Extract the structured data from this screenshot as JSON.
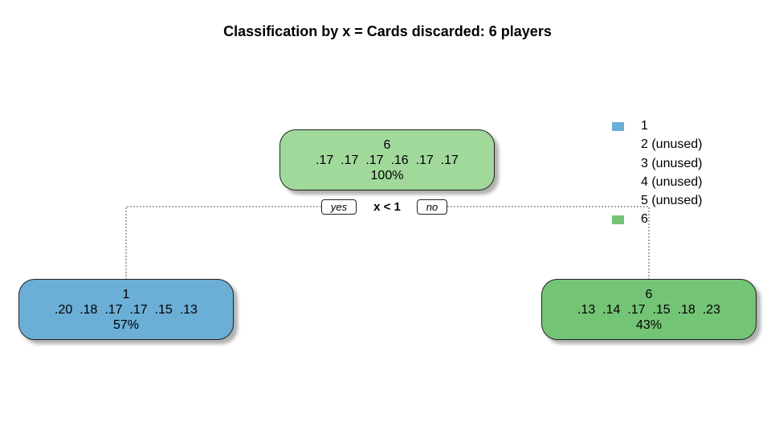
{
  "title": "Classification by x = Cards discarded: 6 players",
  "tree": {
    "root": {
      "class": "6",
      "probs": ".17  .17  .17  .16  .17  .17",
      "percent": "100%",
      "color": "#a1d99b"
    },
    "left": {
      "class": "1",
      "probs": ".20  .18  .17  .17  .15  .13",
      "percent": "57%",
      "color": "#6baed6"
    },
    "right": {
      "class": "6",
      "probs": ".13  .14  .17  .15  .18  .23",
      "percent": "43%",
      "color": "#74c476"
    },
    "split": "x < 1",
    "yes_label": "yes",
    "no_label": "no"
  },
  "legend": {
    "items": [
      {
        "label": "1",
        "color": "#6baed6"
      },
      {
        "label": "2 (unused)",
        "color": ""
      },
      {
        "label": "3 (unused)",
        "color": ""
      },
      {
        "label": "4 (unused)",
        "color": ""
      },
      {
        "label": "5 (unused)",
        "color": ""
      },
      {
        "label": "6",
        "color": "#74c476"
      }
    ]
  }
}
